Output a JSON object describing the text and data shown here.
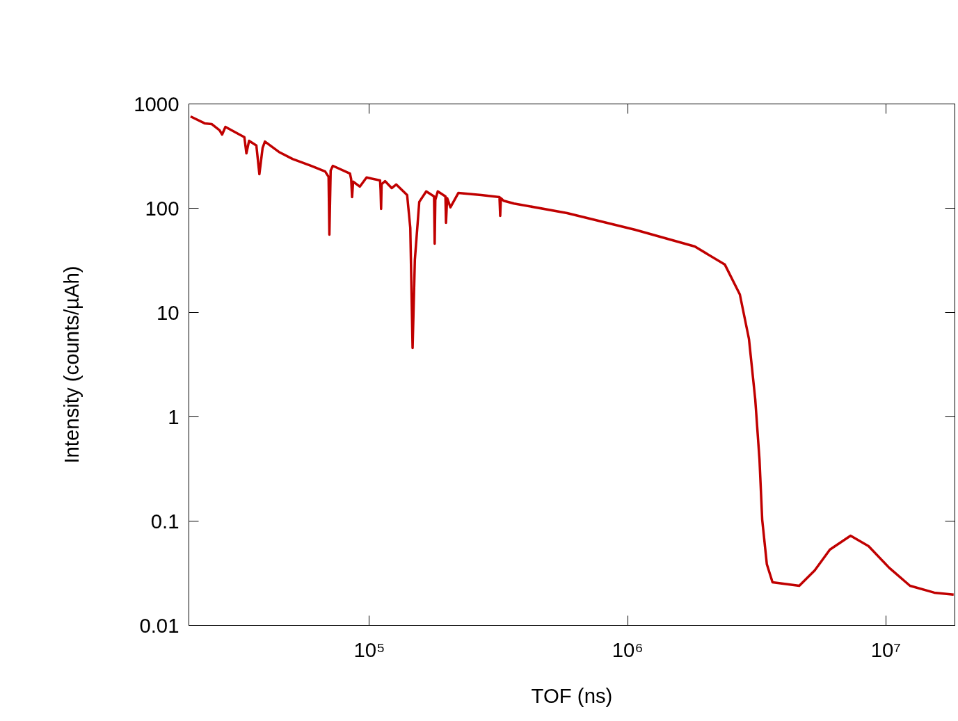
{
  "chart_data": {
    "type": "line",
    "xlabel": "TOF (ns)",
    "ylabel": "Intensity (counts/µAh)",
    "log": "xy",
    "grid": false,
    "marker": "none",
    "line_style": "solid",
    "xlim": [
      20000,
      18500000
    ],
    "ylim": [
      0.01,
      1000
    ],
    "xticks": [
      {
        "value": 100000,
        "label": "10⁵"
      },
      {
        "value": 1000000,
        "label": "10⁶"
      },
      {
        "value": 10000000,
        "label": "10⁷"
      }
    ],
    "yticks": [
      0.01,
      0.1,
      1,
      10,
      100,
      1000
    ],
    "x": [
      20300,
      23100,
      24500,
      26300,
      26900,
      27700,
      31400,
      32800,
      33400,
      34200,
      36500,
      37500,
      38600,
      39400,
      44600,
      50400,
      59600,
      67400,
      69500,
      70000,
      70800,
      72200,
      84100,
      85000,
      85700,
      86500,
      91800,
      97500,
      110000,
      110500,
      111000,
      111500,
      115000,
      122000,
      127000,
      140000,
      144000,
      147000,
      150000,
      156000,
      166000,
      178000,
      179000,
      180000,
      184000,
      197000,
      198000,
      200000,
      206000,
      221000,
      271000,
      319000,
      321000,
      323000,
      331000,
      363000,
      583000,
      1070000,
      1820000,
      2380000,
      2720000,
      2950000,
      3120000,
      3240000,
      3320000,
      3460000,
      3640000,
      4620000,
      5300000,
      6070000,
      7300000,
      8570000,
      10300000,
      12400000,
      15400000,
      18300000
    ],
    "series": [
      {
        "color": "#c00000",
        "values": [
          759,
          650,
          641,
          560,
          509,
          603,
          509,
          480,
          336,
          443,
          400,
          212,
          380,
          436,
          347,
          297,
          255,
          225,
          200,
          55.8,
          230,
          255,
          215,
          190,
          128,
          180,
          161,
          197,
          185,
          150,
          98.5,
          170,
          182,
          156,
          169,
          134,
          65,
          4.57,
          32.1,
          115,
          145,
          130,
          45.7,
          120,
          145,
          130,
          72.4,
          125,
          102,
          140,
          134,
          128,
          84.5,
          125,
          118,
          111,
          89.8,
          62.1,
          43,
          28.8,
          14.9,
          5.58,
          1.47,
          0.392,
          0.103,
          0.0386,
          0.0259,
          0.024,
          0.0336,
          0.0533,
          0.0724,
          0.0575,
          0.0357,
          0.024,
          0.0206,
          0.0197
        ]
      }
    ]
  }
}
